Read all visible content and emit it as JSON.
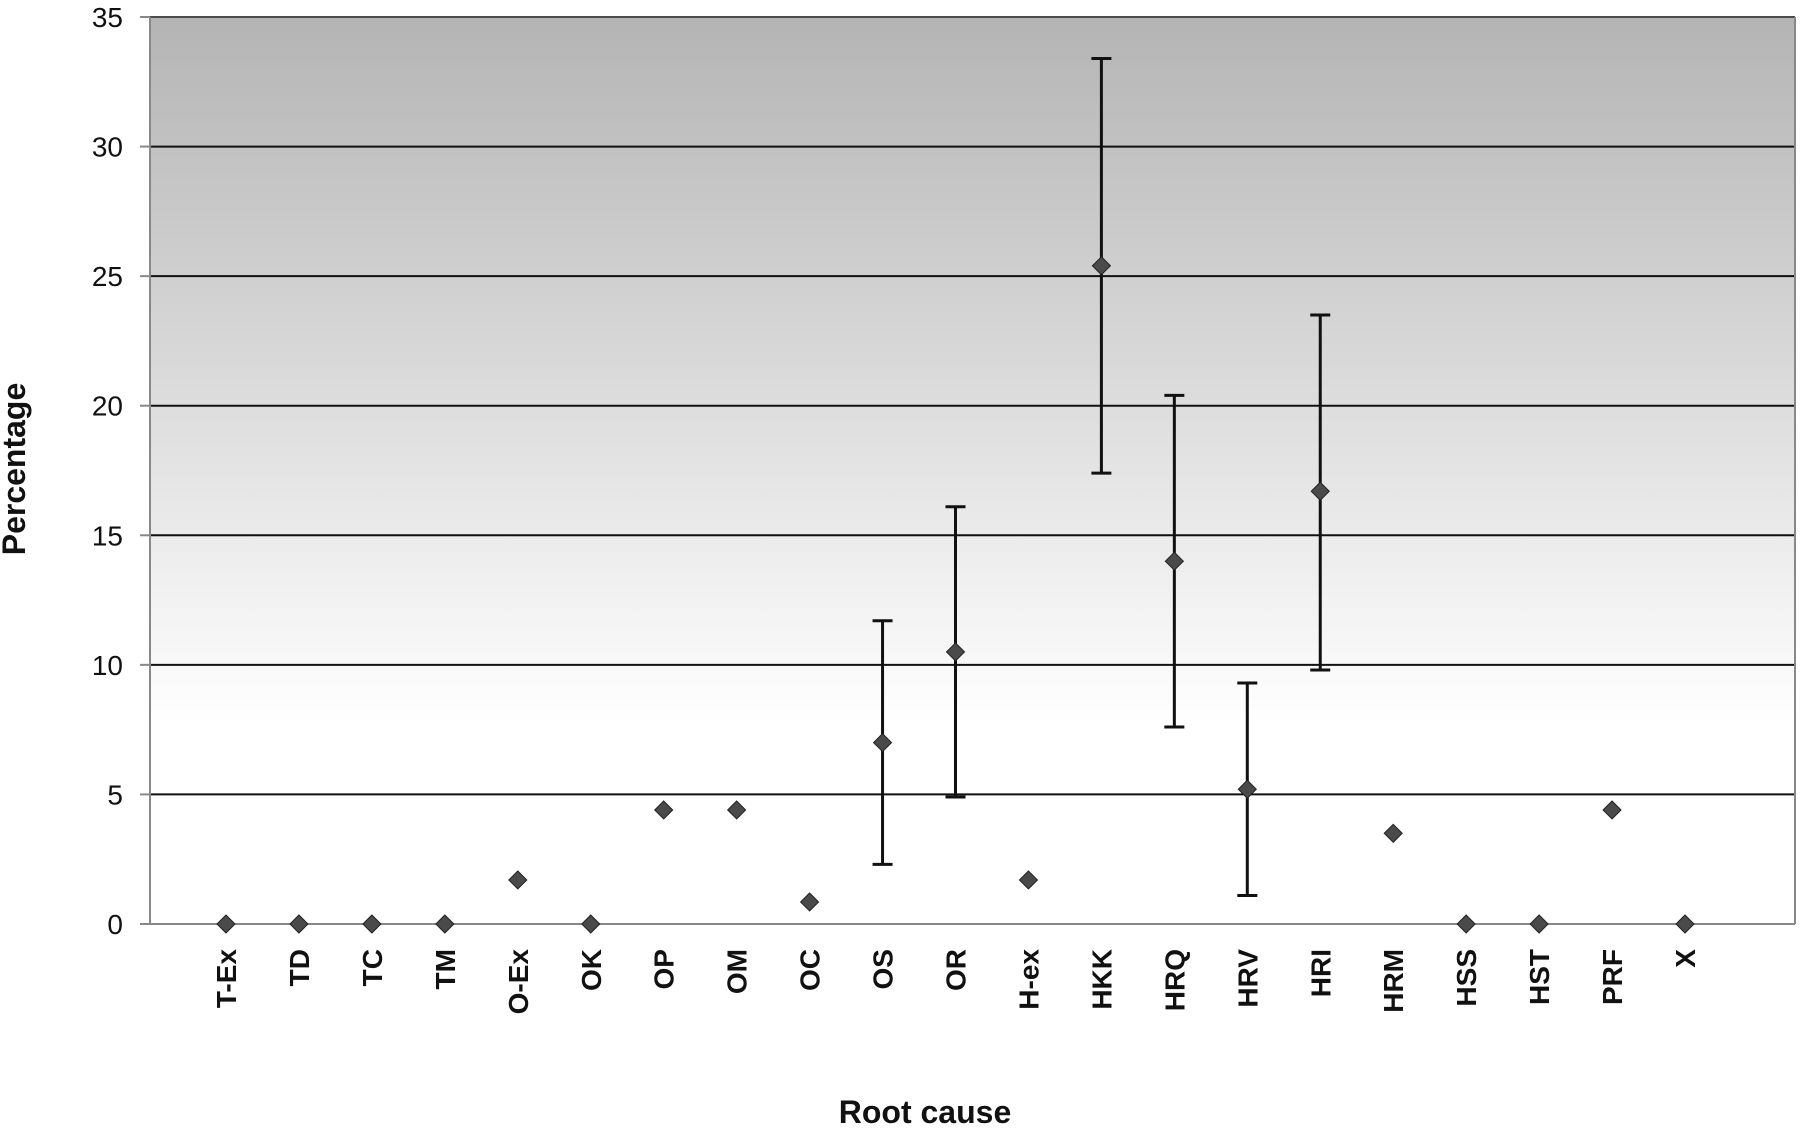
{
  "chart_data": {
    "type": "scatter",
    "title": "",
    "xlabel": "Root cause",
    "ylabel": "Percentage",
    "ylim": [
      0,
      35
    ],
    "yticks": [
      "0",
      "5",
      "10",
      "15",
      "20",
      "25",
      "30",
      "35"
    ],
    "grid": "horizontal",
    "background": "vertical gradient, white at bottom to grey at top",
    "marker": "diamond",
    "categories": [
      "T-Ex",
      "TD",
      "TC",
      "TM",
      "O-Ex",
      "OK",
      "OP",
      "OM",
      "OC",
      "OS",
      "OR",
      "H-ex",
      "HKK",
      "HRQ",
      "HRV",
      "HRI",
      "HRM",
      "HSS",
      "HST",
      "PRF",
      "X"
    ],
    "values": [
      0,
      0,
      0,
      0,
      1.7,
      0,
      4.4,
      4.4,
      0.85,
      7.0,
      10.5,
      1.7,
      25.4,
      14.0,
      5.2,
      16.7,
      3.5,
      0,
      0,
      4.4,
      0
    ],
    "error_low": [
      null,
      null,
      null,
      null,
      null,
      null,
      null,
      null,
      null,
      2.3,
      4.9,
      null,
      17.4,
      7.6,
      1.1,
      9.8,
      null,
      null,
      null,
      null,
      null
    ],
    "error_high": [
      null,
      null,
      null,
      null,
      null,
      null,
      null,
      null,
      null,
      11.7,
      16.1,
      null,
      33.4,
      20.4,
      9.3,
      23.5,
      null,
      null,
      null,
      null,
      null
    ]
  },
  "colors": {
    "gradient_top": "#b4b4b4",
    "gradient_bottom": "#ffffff",
    "gridline": "#111111",
    "marker": "#4a4a4a",
    "errorbar": "#111111"
  }
}
